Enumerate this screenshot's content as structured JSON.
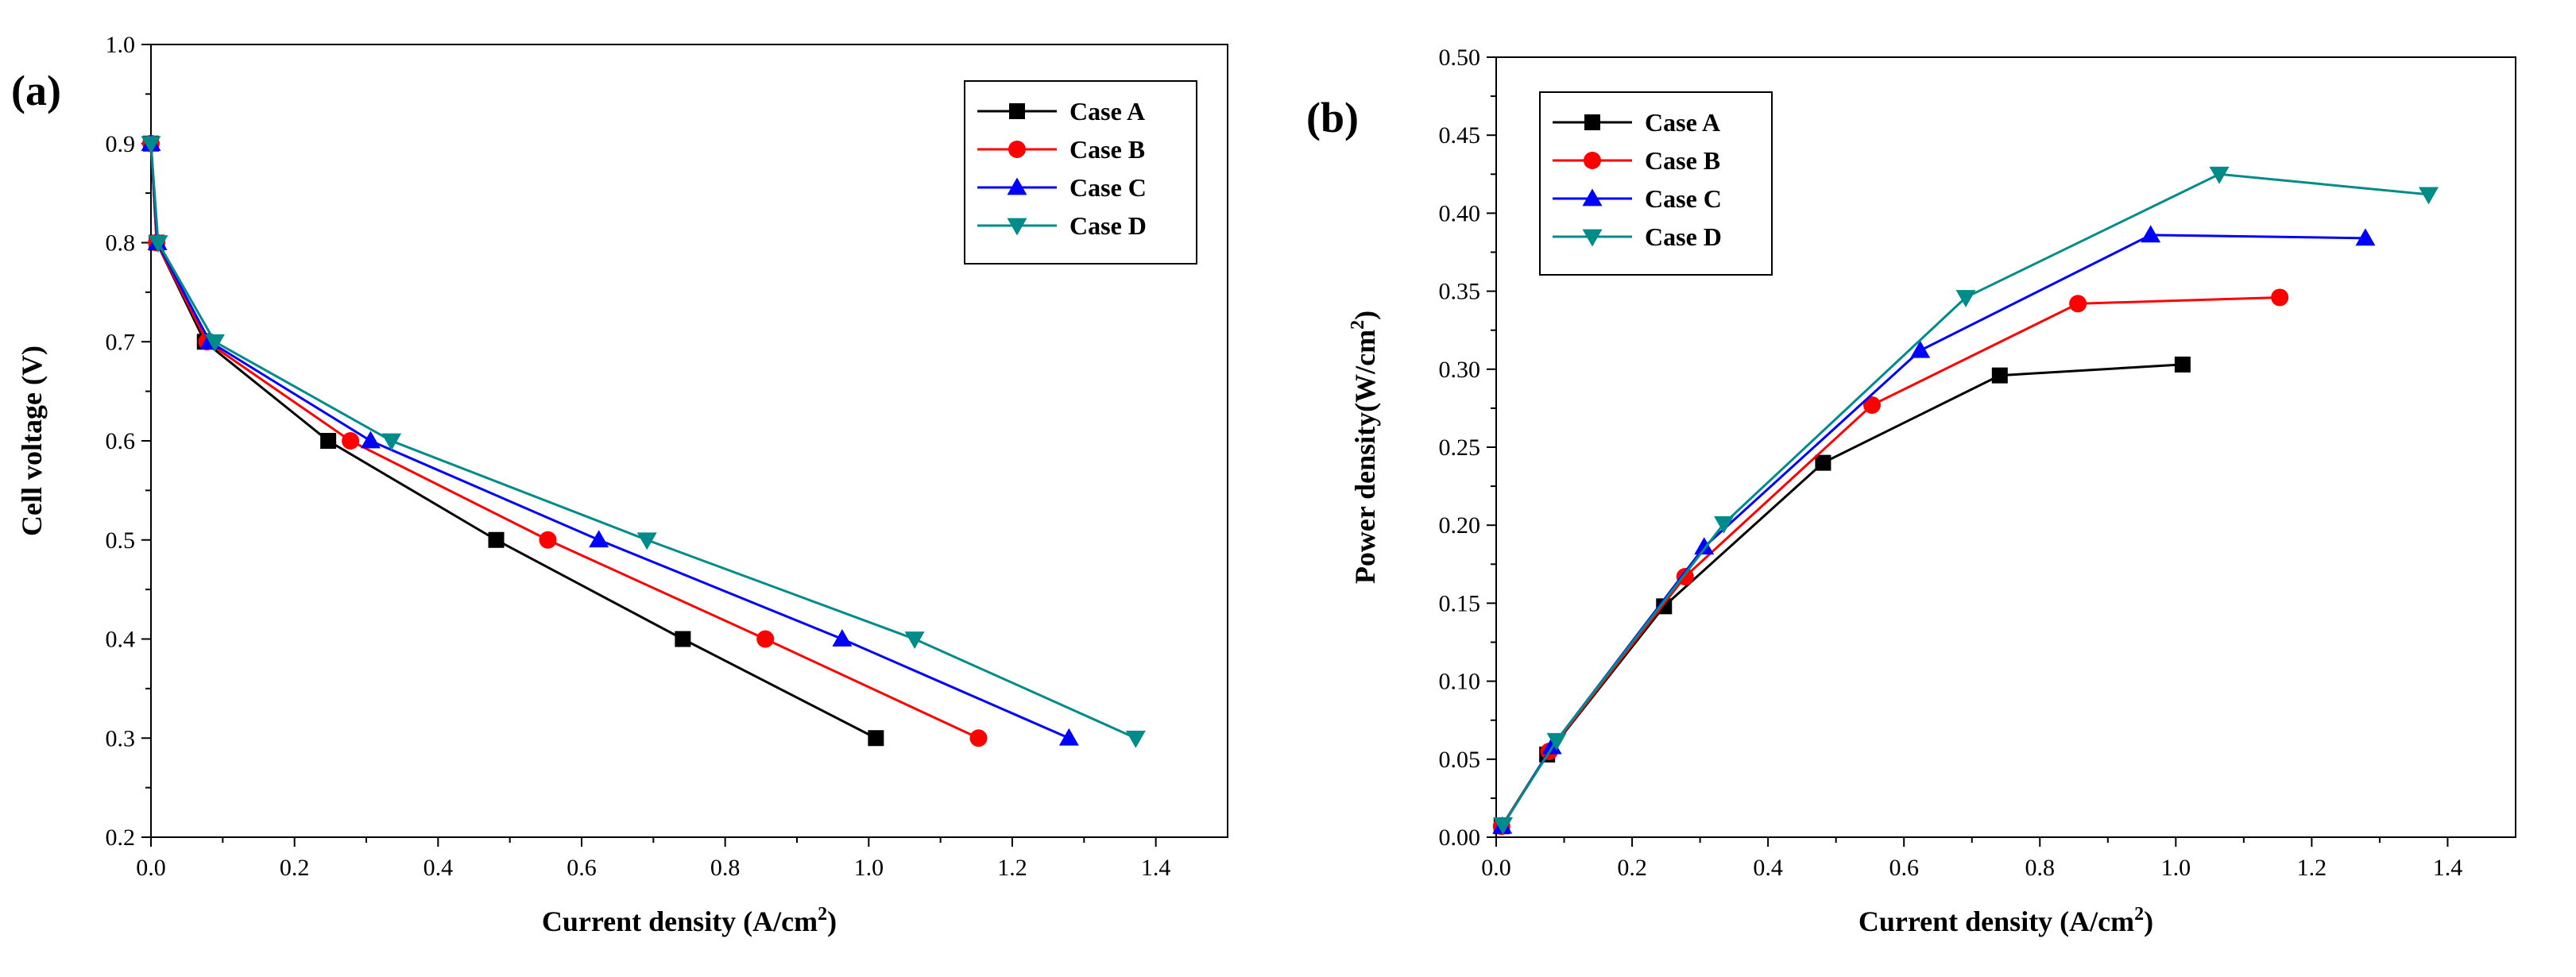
{
  "chart_data": [
    {
      "panel": "(a)",
      "type": "line",
      "title": "",
      "xlabel": "Current density (A/cm",
      "xlabel_sup": "2",
      "xlabel_end": ")",
      "ylabel": "Cell voltage (V)",
      "xlim": [
        0,
        1.5
      ],
      "ylim": [
        0.2,
        1.0
      ],
      "xticks": [
        0.0,
        0.2,
        0.4,
        0.6,
        0.8,
        1.0,
        1.2,
        1.4
      ],
      "xtick_labels": [
        "0.0",
        "0.2",
        "0.4",
        "0.6",
        "0.8",
        "1.0",
        "1.2",
        "1.4"
      ],
      "yticks": [
        0.2,
        0.3,
        0.4,
        0.5,
        0.6,
        0.7,
        0.8,
        0.9,
        1.0
      ],
      "ytick_labels": [
        "0.2",
        "0.3",
        "0.4",
        "0.5",
        "0.6",
        "0.7",
        "0.8",
        "0.9",
        "1.0"
      ],
      "grid": false,
      "legend_position": "top-right",
      "series": [
        {
          "name": "Case A",
          "color": "#000000",
          "marker": "square",
          "x": [
            0.0,
            0.008,
            0.075,
            0.247,
            0.481,
            0.741,
            1.01
          ],
          "y": [
            0.9,
            0.8,
            0.7,
            0.6,
            0.5,
            0.4,
            0.3
          ]
        },
        {
          "name": "Case B",
          "color": "#ff0000",
          "marker": "circle",
          "x": [
            0.0,
            0.008,
            0.078,
            0.278,
            0.553,
            0.856,
            1.153
          ],
          "y": [
            0.9,
            0.8,
            0.7,
            0.6,
            0.5,
            0.4,
            0.3
          ]
        },
        {
          "name": "Case C",
          "color": "#0000ff",
          "marker": "triangle-up",
          "x": [
            0.0,
            0.009,
            0.082,
            0.306,
            0.624,
            0.963,
            1.279
          ],
          "y": [
            0.9,
            0.8,
            0.7,
            0.6,
            0.5,
            0.4,
            0.3
          ]
        },
        {
          "name": "Case D",
          "color": "#008b8b",
          "marker": "triangle-down",
          "x": [
            0.0,
            0.01,
            0.089,
            0.335,
            0.691,
            1.064,
            1.372
          ],
          "y": [
            0.9,
            0.8,
            0.7,
            0.6,
            0.5,
            0.4,
            0.3
          ]
        }
      ]
    },
    {
      "panel": "(b)",
      "type": "line",
      "title": "",
      "xlabel": "Current density (A/cm",
      "xlabel_sup": "2",
      "xlabel_end": ")",
      "ylabel": "Power density(W/cm",
      "ylabel_sup": "2",
      "ylabel_end": ")",
      "xlim": [
        0,
        1.5
      ],
      "ylim": [
        0.0,
        0.5
      ],
      "xticks": [
        0.0,
        0.2,
        0.4,
        0.6,
        0.8,
        1.0,
        1.2,
        1.4
      ],
      "xtick_labels": [
        "0.0",
        "0.2",
        "0.4",
        "0.6",
        "0.8",
        "1.0",
        "1.2",
        "1.4"
      ],
      "yticks": [
        0.0,
        0.05,
        0.1,
        0.15,
        0.2,
        0.25,
        0.3,
        0.35,
        0.4,
        0.45,
        0.5
      ],
      "ytick_labels": [
        "0.00",
        "0.05",
        "0.10",
        "0.15",
        "0.20",
        "0.25",
        "0.30",
        "0.35",
        "0.40",
        "0.45",
        "0.50"
      ],
      "grid": false,
      "legend_position": "top-left",
      "series": [
        {
          "name": "Case A",
          "color": "#000000",
          "marker": "square",
          "x": [
            0.008,
            0.075,
            0.247,
            0.481,
            0.741,
            1.01
          ],
          "y": [
            0.007,
            0.053,
            0.148,
            0.24,
            0.296,
            0.303
          ]
        },
        {
          "name": "Case B",
          "color": "#ff0000",
          "marker": "circle",
          "x": [
            0.008,
            0.078,
            0.278,
            0.553,
            0.856,
            1.153
          ],
          "y": [
            0.007,
            0.055,
            0.167,
            0.277,
            0.342,
            0.346
          ]
        },
        {
          "name": "Case C",
          "color": "#0000ff",
          "marker": "triangle-up",
          "x": [
            0.009,
            0.082,
            0.306,
            0.624,
            0.963,
            1.279
          ],
          "y": [
            0.007,
            0.058,
            0.186,
            0.312,
            0.386,
            0.384
          ]
        },
        {
          "name": "Case D",
          "color": "#008b8b",
          "marker": "triangle-down",
          "x": [
            0.01,
            0.089,
            0.335,
            0.691,
            1.064,
            1.372
          ],
          "y": [
            0.008,
            0.062,
            0.201,
            0.346,
            0.425,
            0.412
          ]
        }
      ]
    }
  ]
}
